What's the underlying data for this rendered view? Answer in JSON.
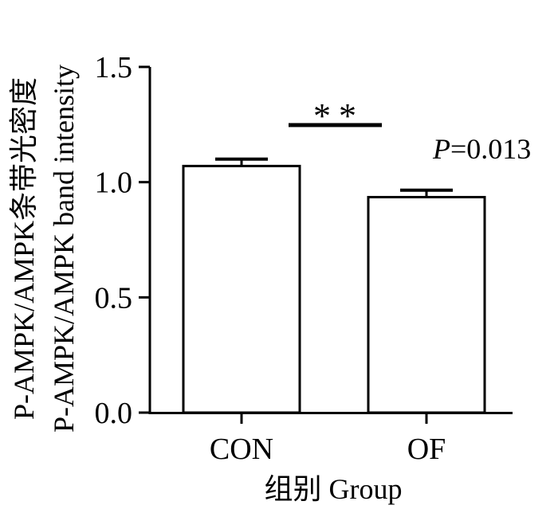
{
  "chart_data": {
    "type": "bar",
    "categories": [
      "CON",
      "OF"
    ],
    "values": [
      1.07,
      0.935
    ],
    "errors": [
      0.03,
      0.03
    ],
    "ylim": [
      0,
      1.5
    ],
    "yticks": [
      "0.0",
      "0.5",
      "1.0",
      "1.5"
    ],
    "ylabel_line1": "P-AMPK/AMPK条带光密度",
    "ylabel_line2": "P-AMPK/AMPK band intensity",
    "xlabel": "组别  Group",
    "significance": "**",
    "p_value": {
      "prefix": "P",
      "suffix": "=0.013"
    },
    "colors": {
      "bar_fill": "#ffffff",
      "ink": "#000000"
    }
  }
}
